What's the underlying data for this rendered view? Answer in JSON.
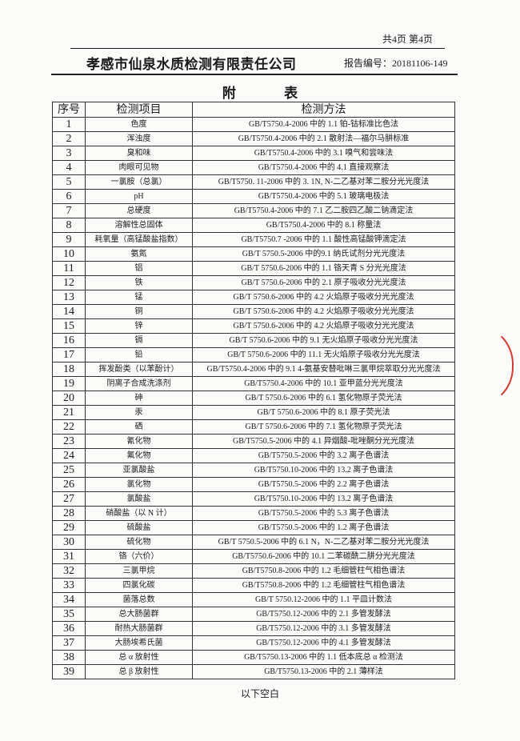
{
  "header": {
    "page_info": "共4页 第4页",
    "company": "孝感市仙泉水质检测有限责任公司",
    "report_no": "报告编号：20181106-149"
  },
  "title": "附 表",
  "table": {
    "columns": [
      "序号",
      "检测项目",
      "检测方法"
    ],
    "rows": [
      [
        "1",
        "色度",
        "GB/T5750.4-2006 中的 1.1 铂-钴标准比色法"
      ],
      [
        "2",
        "浑浊度",
        "GB/T5750.4-2006 中的 2.1 散射法—福尔马肼标准"
      ],
      [
        "3",
        "臭和味",
        "GB/T5750.4-2006 中的 3.1 嗅气和尝味法"
      ],
      [
        "4",
        "肉眼可见物",
        "GB/T5750.4-2006 中的 4.1 直接观察法"
      ],
      [
        "5",
        "一氯胺（总氯）",
        "GB/T5750. 11-2006 中的 3. 1N, N-二乙基对苯二胺分光光度法"
      ],
      [
        "6",
        "pH",
        "GB/T5750.4-2006 中的 5.1 玻璃电极法"
      ],
      [
        "7",
        "总硬度",
        "GB/T5750.4-2006 中的 7.1 乙二胺四乙酸二钠滴定法"
      ],
      [
        "8",
        "溶解性总固体",
        "GB/T5750.4-2006 中的 8.1 称量法"
      ],
      [
        "9",
        "耗氧量（高锰酸盐指数）",
        "GB/T5750.7 -2006 中的 1.1 酸性高锰酸钾滴定法"
      ],
      [
        "10",
        "氨氮",
        "GB/T 5750.5-2006 中的9.1 纳氏试剂分光光度法"
      ],
      [
        "11",
        "铝",
        "GB/T 5750.6-2006 中的 1.1 铬天青 S 分光光度法"
      ],
      [
        "12",
        "铁",
        "GB/T 5750.6-2006 中的 2.1 原子吸收分光光度法"
      ],
      [
        "13",
        "锰",
        "GB/T 5750.6-2006 中的 4.2 火焰原子吸收分光光度法"
      ],
      [
        "14",
        "铜",
        "GB/T 5750.6-2006 中的 4.2 火焰原子吸收分光光度法"
      ],
      [
        "15",
        "锌",
        "GB/T 5750.6-2006 中的 4.2 火焰原子吸收分光光度法"
      ],
      [
        "16",
        "镉",
        "GB/T 5750.6-2006 中的 9.1 无火焰原子吸收分光光度法"
      ],
      [
        "17",
        "铅",
        "GB/T 5750.6-2006 中的 11.1 无火焰原子吸收分光光度法"
      ],
      [
        "18",
        "挥发酚类（以苯酚计）",
        "GB/T5750.4-2006 中的 9.1  4-氨基安替吡啉三氯甲烷萃取分光光度法"
      ],
      [
        "19",
        "阴离子合成洗涤剂",
        "GB/T5750.4-2006 中的 10.1 亚甲蓝分光光度法"
      ],
      [
        "20",
        "砷",
        "GB/T 5750.6-2006 中的 6.1 氢化物原子荧光法"
      ],
      [
        "21",
        "汞",
        "GB/T 5750.6-2006 中的 8.1 原子荧光法"
      ],
      [
        "22",
        "硒",
        "GB/T 5750.6-2006 中的 7.1 氢化物原子荧光法"
      ],
      [
        "23",
        "氰化物",
        "GB/T5750.5-2006 中的 4.1 异烟酸-吡唑酮分光光度法"
      ],
      [
        "24",
        "氟化物",
        "GB/T5750.5-2006 中的 3.2 离子色谱法"
      ],
      [
        "25",
        "亚氯酸盐",
        "GB/T5750.10-2006 中的 13.2 离子色谱法"
      ],
      [
        "26",
        "氯化物",
        "GB/T5750.5-2006 中的 2.2 离子色谱法"
      ],
      [
        "27",
        "氯酸盐",
        "GB/T5750.10-2006 中的 13.2 离子色谱法"
      ],
      [
        "28",
        "硝酸盐（以 N 计）",
        "GB/T5750.5-2006 中的 5.3 离子色谱法"
      ],
      [
        "29",
        "硫酸盐",
        "GB/T5750.5-2006 中的 1.2 离子色谱法"
      ],
      [
        "30",
        "硫化物",
        "GB/T 5750.5-2006 中的 6.1  N，N-二乙基对苯二胺分光光度法"
      ],
      [
        "31",
        "铬（六价）",
        "GB/T5750.6-2006 中的 10.1 二苯碳酰二肼分光光度法"
      ],
      [
        "32",
        "三氯甲烷",
        "GB/T5750.8-2006 中的 1.2 毛细管柱气相色谱法"
      ],
      [
        "33",
        "四氯化碳",
        "GB/T5750.8-2006 中的 1.2 毛细管柱气相色谱法"
      ],
      [
        "34",
        "菌落总数",
        "GB/T 5750.12-2006 中的 1.1 平皿计数法"
      ],
      [
        "35",
        "总大肠菌群",
        "GB/T5750.12-2006 中的 2.1 多管发酵法"
      ],
      [
        "36",
        "耐热大肠菌群",
        "GB/T5750.12-2006 中的 3.1 多管发酵法"
      ],
      [
        "37",
        "大肠埃希氏菌",
        "GB/T5750.12-2006 中的 4.1 多管发酵法"
      ],
      [
        "38",
        "总 α 放射性",
        "GB/T5750.13-2006 中的 1.1 低本底总 α 检测法"
      ],
      [
        "39",
        "总 β 放射性",
        "GB/T5750.13-2006 中的 2.1 薄样法"
      ]
    ]
  },
  "footer": {
    "blank_note": "以下空白"
  },
  "colors": {
    "stamp": "#d8382f"
  }
}
